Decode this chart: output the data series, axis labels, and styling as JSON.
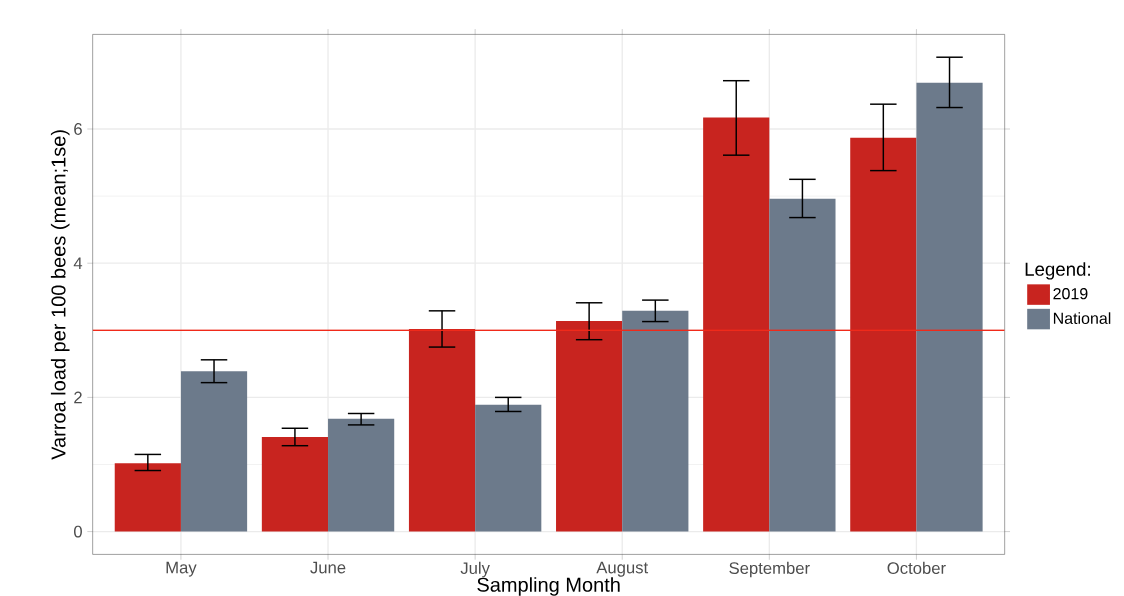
{
  "chart_data": {
    "type": "bar",
    "xlabel": "Sampling Month",
    "ylabel": "Varroa load per 100 bees (mean;1se)",
    "legend_title": "Legend:",
    "categories": [
      "May",
      "June",
      "July",
      "August",
      "September",
      "October"
    ],
    "series": [
      {
        "name": "2019",
        "color": "#c8241f",
        "values": [
          1.02,
          1.41,
          3.02,
          3.14,
          6.17,
          5.87
        ],
        "errors": [
          [
            0.91,
            1.15
          ],
          [
            1.28,
            1.54
          ],
          [
            2.75,
            3.29
          ],
          [
            2.86,
            3.41
          ],
          [
            5.61,
            6.72
          ],
          [
            5.38,
            6.37
          ]
        ]
      },
      {
        "name": "National",
        "color": "#6c7a8b",
        "values": [
          2.39,
          1.68,
          1.89,
          3.29,
          4.96,
          6.69
        ],
        "errors": [
          [
            2.22,
            2.56
          ],
          [
            1.59,
            1.76
          ],
          [
            1.79,
            2.0
          ],
          [
            3.13,
            3.45
          ],
          [
            4.68,
            5.25
          ],
          [
            6.32,
            7.07
          ]
        ]
      }
    ],
    "ylim": [
      -0.34,
      7.41
    ],
    "yticks": [
      0,
      2,
      4,
      6
    ],
    "ref_lines": [
      {
        "axis": "y",
        "value": 3,
        "color": "#f02a1a"
      }
    ],
    "grid": true,
    "legend": "right"
  }
}
